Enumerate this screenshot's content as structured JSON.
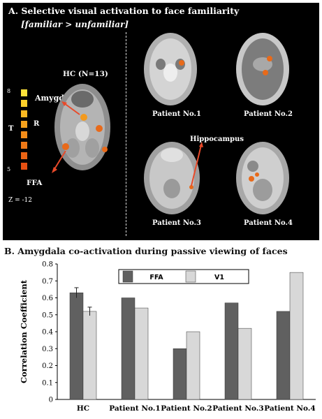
{
  "panel_a": {
    "title": "A.  Selective visual activation  to face familiarity",
    "subtitle": "[familiar > unfamiliar]",
    "hc_label": "HC (N=13)",
    "amygdala_label": "Amygdala",
    "ffa_label": "FFA",
    "r_label": "R",
    "t_label": "T",
    "scale_max": "8",
    "scale_min": "5",
    "z_label": "Z = -12",
    "hippocampus_label": "Hippocampus",
    "patients": [
      "Patient No.1",
      "Patient No.2",
      "Patient No.3",
      "Patient No.4"
    ],
    "activation_color": "#e86a1a"
  },
  "panel_b": {
    "title": "B.  Amygdala co-activation during passive viewing of faces"
  },
  "chart_data": {
    "type": "bar",
    "title": "",
    "xlabel": "",
    "ylabel": "Correlation Coefficient",
    "categories": [
      "HC",
      "Patient No.1",
      "Patient No.2",
      "Patient No.3",
      "Patient No.4"
    ],
    "series": [
      {
        "name": "FFA",
        "values": [
          0.63,
          0.6,
          0.3,
          0.57,
          0.52
        ],
        "color": "#606060"
      },
      {
        "name": "V1",
        "values": [
          0.52,
          0.54,
          0.4,
          0.42,
          0.75
        ],
        "color": "#d8d8d8"
      }
    ],
    "error_bars": {
      "HC": [
        0.03,
        0.025
      ]
    },
    "yticks": [
      "0",
      "0.1",
      "0.2",
      "0.3",
      "0.4",
      "0.5",
      "0.6",
      "0.7",
      "0.8"
    ],
    "ylim": [
      0,
      0.8
    ],
    "grid": false,
    "legend": "top-center"
  }
}
